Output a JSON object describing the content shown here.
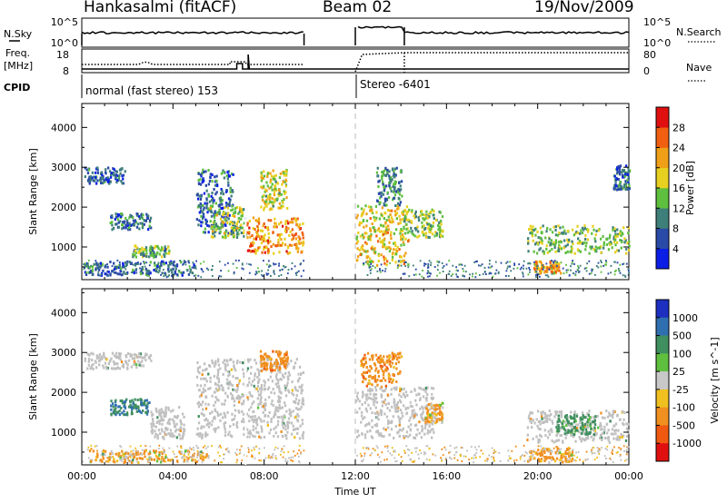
{
  "header": {
    "station": "Hankasalmi (fitACF)",
    "beam": "Beam 02",
    "date": "19/Nov/2009"
  },
  "left_labels": {
    "nsky": "N.Sky",
    "freq_line1": "Freq.",
    "freq_line2": "[MHz]",
    "cpid": "CPID"
  },
  "right_labels": {
    "nsearch": "N.Search",
    "nave": "Nave"
  },
  "top_panel": {
    "nsky_ticks": [
      "10^5",
      "10^0"
    ],
    "nsearch_ticks": [
      "10^5",
      "10^0"
    ],
    "freq_ticks": [
      "18",
      "8"
    ],
    "nave_ticks": [
      "80",
      "0"
    ]
  },
  "cpid_labels": [
    {
      "text": "normal (fast stereo) 153",
      "hour": 0.0
    },
    {
      "text": "Stereo -6401",
      "hour": 12.0
    }
  ],
  "colors": {
    "power_scale": [
      "#0a1ee6",
      "#2a4aa8",
      "#3f7f7a",
      "#5fbf3f",
      "#e8d020",
      "#f0a018",
      "#f06010",
      "#e01010"
    ],
    "velocity_scale": [
      "#1c2fc0",
      "#2f6fb0",
      "#3f8f5f",
      "#5fbf3f",
      "#c8c8c8",
      "#f0c020",
      "#f09020",
      "#f05a10",
      "#e01010"
    ],
    "ground_scatter": "#c0c0c0"
  },
  "chart_data": [
    {
      "type": "heatmap",
      "title": "",
      "xlabel": "",
      "ylabel": "Slant Range [km]",
      "x_unit": "hours UT",
      "xlim": [
        0,
        24
      ],
      "ylim": [
        180,
        4600
      ],
      "yticks": [
        1000,
        2000,
        3000,
        4000
      ],
      "colorbar": {
        "label": "Power [dB]",
        "range": [
          0,
          32
        ],
        "ticks": [
          "4",
          "8",
          "12",
          "16",
          "20",
          "24",
          "28"
        ]
      },
      "features": [
        {
          "t0": 0.1,
          "t1": 1.9,
          "r0": 2550,
          "r1": 2950,
          "mean_value": 7
        },
        {
          "t0": 1.2,
          "t1": 3.0,
          "r0": 1400,
          "r1": 1800,
          "mean_value": 9
        },
        {
          "t0": 2.2,
          "t1": 3.8,
          "r0": 700,
          "r1": 1000,
          "mean_value": 13
        },
        {
          "t0": 0.1,
          "t1": 5.0,
          "r0": 250,
          "r1": 600,
          "mean_value": 8
        },
        {
          "t0": 5.0,
          "t1": 6.6,
          "r0": 1300,
          "r1": 2900,
          "mean_value": 8
        },
        {
          "t0": 5.6,
          "t1": 7.2,
          "r0": 1200,
          "r1": 2000,
          "mean_value": 15
        },
        {
          "t0": 7.2,
          "t1": 9.7,
          "r0": 800,
          "r1": 1700,
          "mean_value": 23
        },
        {
          "t0": 7.8,
          "t1": 9.0,
          "r0": 1900,
          "r1": 2900,
          "mean_value": 17
        },
        {
          "t0": 12.0,
          "t1": 14.3,
          "r0": 500,
          "r1": 2000,
          "mean_value": 19
        },
        {
          "t0": 12.9,
          "t1": 14.0,
          "r0": 2000,
          "r1": 2950,
          "mean_value": 10
        },
        {
          "t0": 14.0,
          "t1": 15.8,
          "r0": 1200,
          "r1": 1900,
          "mean_value": 14
        },
        {
          "t0": 19.5,
          "t1": 24.0,
          "r0": 800,
          "r1": 1500,
          "mean_value": 14
        },
        {
          "t0": 19.8,
          "t1": 21.0,
          "r0": 300,
          "r1": 600,
          "mean_value": 22
        },
        {
          "t0": 23.3,
          "t1": 24.0,
          "r0": 2400,
          "r1": 3000,
          "mean_value": 8
        }
      ]
    },
    {
      "type": "heatmap",
      "title": "",
      "xlabel": "Time UT",
      "ylabel": "Slant Range [km]",
      "x_unit": "hours UT",
      "xlim": [
        0,
        24
      ],
      "ylim": [
        180,
        4600
      ],
      "yticks": [
        1000,
        2000,
        3000,
        4000
      ],
      "xticks": [
        "00:00",
        "04:00",
        "08:00",
        "12:00",
        "16:00",
        "20:00",
        "00:00"
      ],
      "colorbar": {
        "label": "Velocity [m s^-1]",
        "ticks": [
          "1000",
          "500",
          "100",
          "25",
          "-25",
          "-100",
          "-500",
          "-1000"
        ]
      },
      "features": [
        {
          "t0": 0.1,
          "t1": 3.0,
          "r0": 2550,
          "r1": 2950,
          "mean_value": 0
        },
        {
          "t0": 1.2,
          "t1": 3.0,
          "r0": 1400,
          "r1": 1800,
          "mean_value": 250
        },
        {
          "t0": 3.0,
          "t1": 4.5,
          "r0": 800,
          "r1": 1600,
          "mean_value": 0
        },
        {
          "t0": 0.1,
          "t1": 5.5,
          "r0": 200,
          "r1": 500,
          "mean_value": -80
        },
        {
          "t0": 5.0,
          "t1": 9.7,
          "r0": 800,
          "r1": 2800,
          "mean_value": 0
        },
        {
          "t0": 7.8,
          "t1": 9.0,
          "r0": 2500,
          "r1": 3000,
          "mean_value": -200
        },
        {
          "t0": 12.0,
          "t1": 15.5,
          "r0": 800,
          "r1": 2100,
          "mean_value": 0
        },
        {
          "t0": 12.2,
          "t1": 14.0,
          "r0": 2100,
          "r1": 2950,
          "mean_value": -180
        },
        {
          "t0": 15.0,
          "t1": 15.8,
          "r0": 1200,
          "r1": 1700,
          "mean_value": -100
        },
        {
          "t0": 19.5,
          "t1": 24.0,
          "r0": 700,
          "r1": 1500,
          "mean_value": 0
        },
        {
          "t0": 20.8,
          "t1": 22.5,
          "r0": 900,
          "r1": 1400,
          "mean_value": 150
        },
        {
          "t0": 19.5,
          "t1": 21.5,
          "r0": 200,
          "r1": 550,
          "mean_value": -120
        }
      ]
    }
  ]
}
